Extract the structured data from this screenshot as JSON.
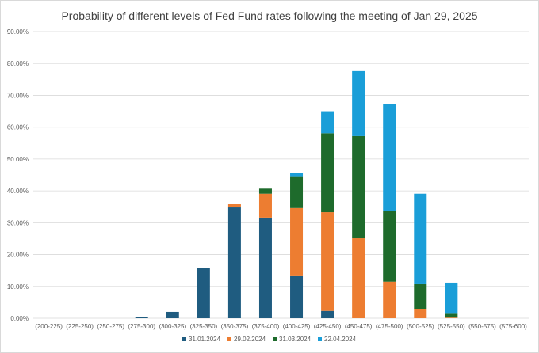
{
  "chart_data": {
    "type": "bar",
    "stacked": true,
    "title": "Probability of different levels of Fed Fund rates following the meeting of Jan 29, 2025",
    "xlabel": "",
    "ylabel": "",
    "ylim": [
      0,
      90
    ],
    "ytick_step": 10,
    "ytick_format": "percent_2dp",
    "grid": true,
    "legend_position": "bottom",
    "categories": [
      "(200-225)",
      "(225-250)",
      "(250-275)",
      "(275-300)",
      "(300-325)",
      "(325-350)",
      "(350-375)",
      "(375-400)",
      "(400-425)",
      "(425-450)",
      "(450-475)",
      "(475-500)",
      "(500-525)",
      "(525-550)",
      "(550-575)",
      "(575-600)"
    ],
    "series": [
      {
        "name": "31.01.2024",
        "color": "#1f5c80",
        "values": [
          0,
          0,
          0,
          0.3,
          2.0,
          15.8,
          34.8,
          31.6,
          13.2,
          2.3,
          0,
          0,
          0,
          0,
          0,
          0
        ]
      },
      {
        "name": "29.02.2024",
        "color": "#ed7d31",
        "values": [
          0,
          0,
          0,
          0,
          0,
          0,
          1.0,
          7.5,
          21.4,
          31.0,
          25.1,
          11.5,
          2.9,
          0.2,
          0,
          0
        ]
      },
      {
        "name": "31.03.2024",
        "color": "#1e6b2c",
        "values": [
          0,
          0,
          0,
          0,
          0,
          0,
          0,
          1.6,
          10.0,
          24.8,
          32.1,
          22.2,
          7.8,
          1.2,
          0,
          0
        ]
      },
      {
        "name": "22.04.2024",
        "color": "#1a9ed8",
        "values": [
          0,
          0,
          0,
          0,
          0,
          0,
          0,
          0,
          1.1,
          6.9,
          20.4,
          33.6,
          28.4,
          9.8,
          0,
          0
        ]
      }
    ]
  }
}
